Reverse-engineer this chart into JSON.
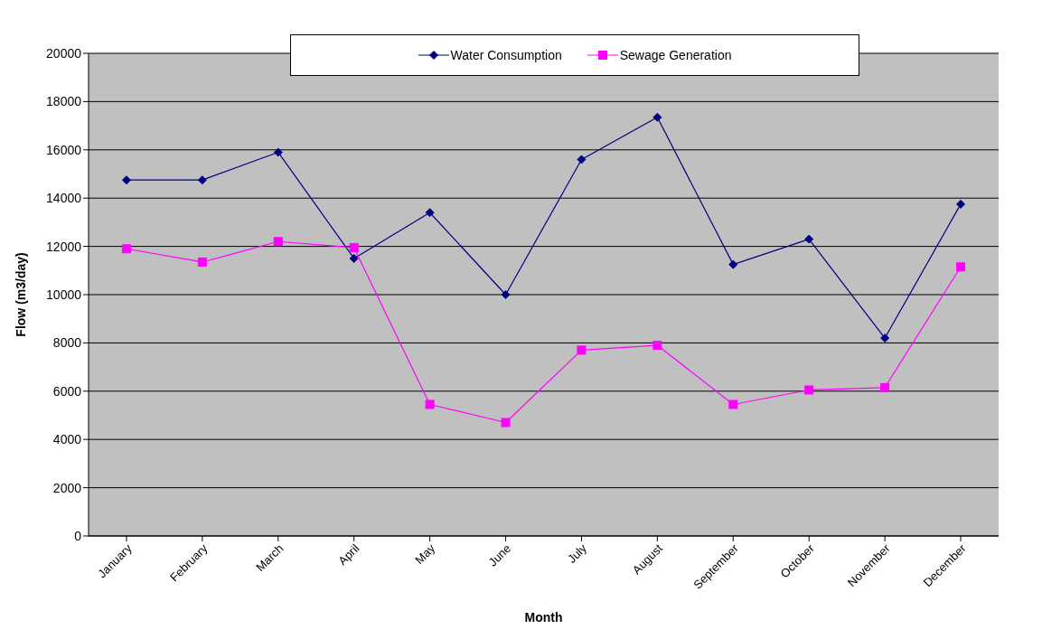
{
  "chart_data": {
    "type": "line",
    "xlabel": "Month",
    "ylabel": "Flow (m3/day)",
    "categories": [
      "January",
      "February",
      "March",
      "April",
      "May",
      "June",
      "July",
      "August",
      "September",
      "October",
      "November",
      "December"
    ],
    "series": [
      {
        "name": "Water Consumption",
        "color": "#000080",
        "marker": "diamond",
        "values": [
          14750,
          14750,
          15900,
          11500,
          13400,
          10000,
          15600,
          17350,
          11250,
          12300,
          8200,
          13750
        ]
      },
      {
        "name": "Sewage Generation",
        "color": "#ff00ff",
        "marker": "square",
        "values": [
          11900,
          11350,
          12200,
          11950,
          5450,
          4700,
          7700,
          7900,
          5450,
          6050,
          6150,
          11150
        ]
      }
    ],
    "ylim": [
      0,
      20000
    ],
    "yticks": [
      0,
      2000,
      4000,
      6000,
      8000,
      10000,
      12000,
      14000,
      16000,
      18000,
      20000
    ],
    "grid": "y",
    "legend": "top"
  }
}
